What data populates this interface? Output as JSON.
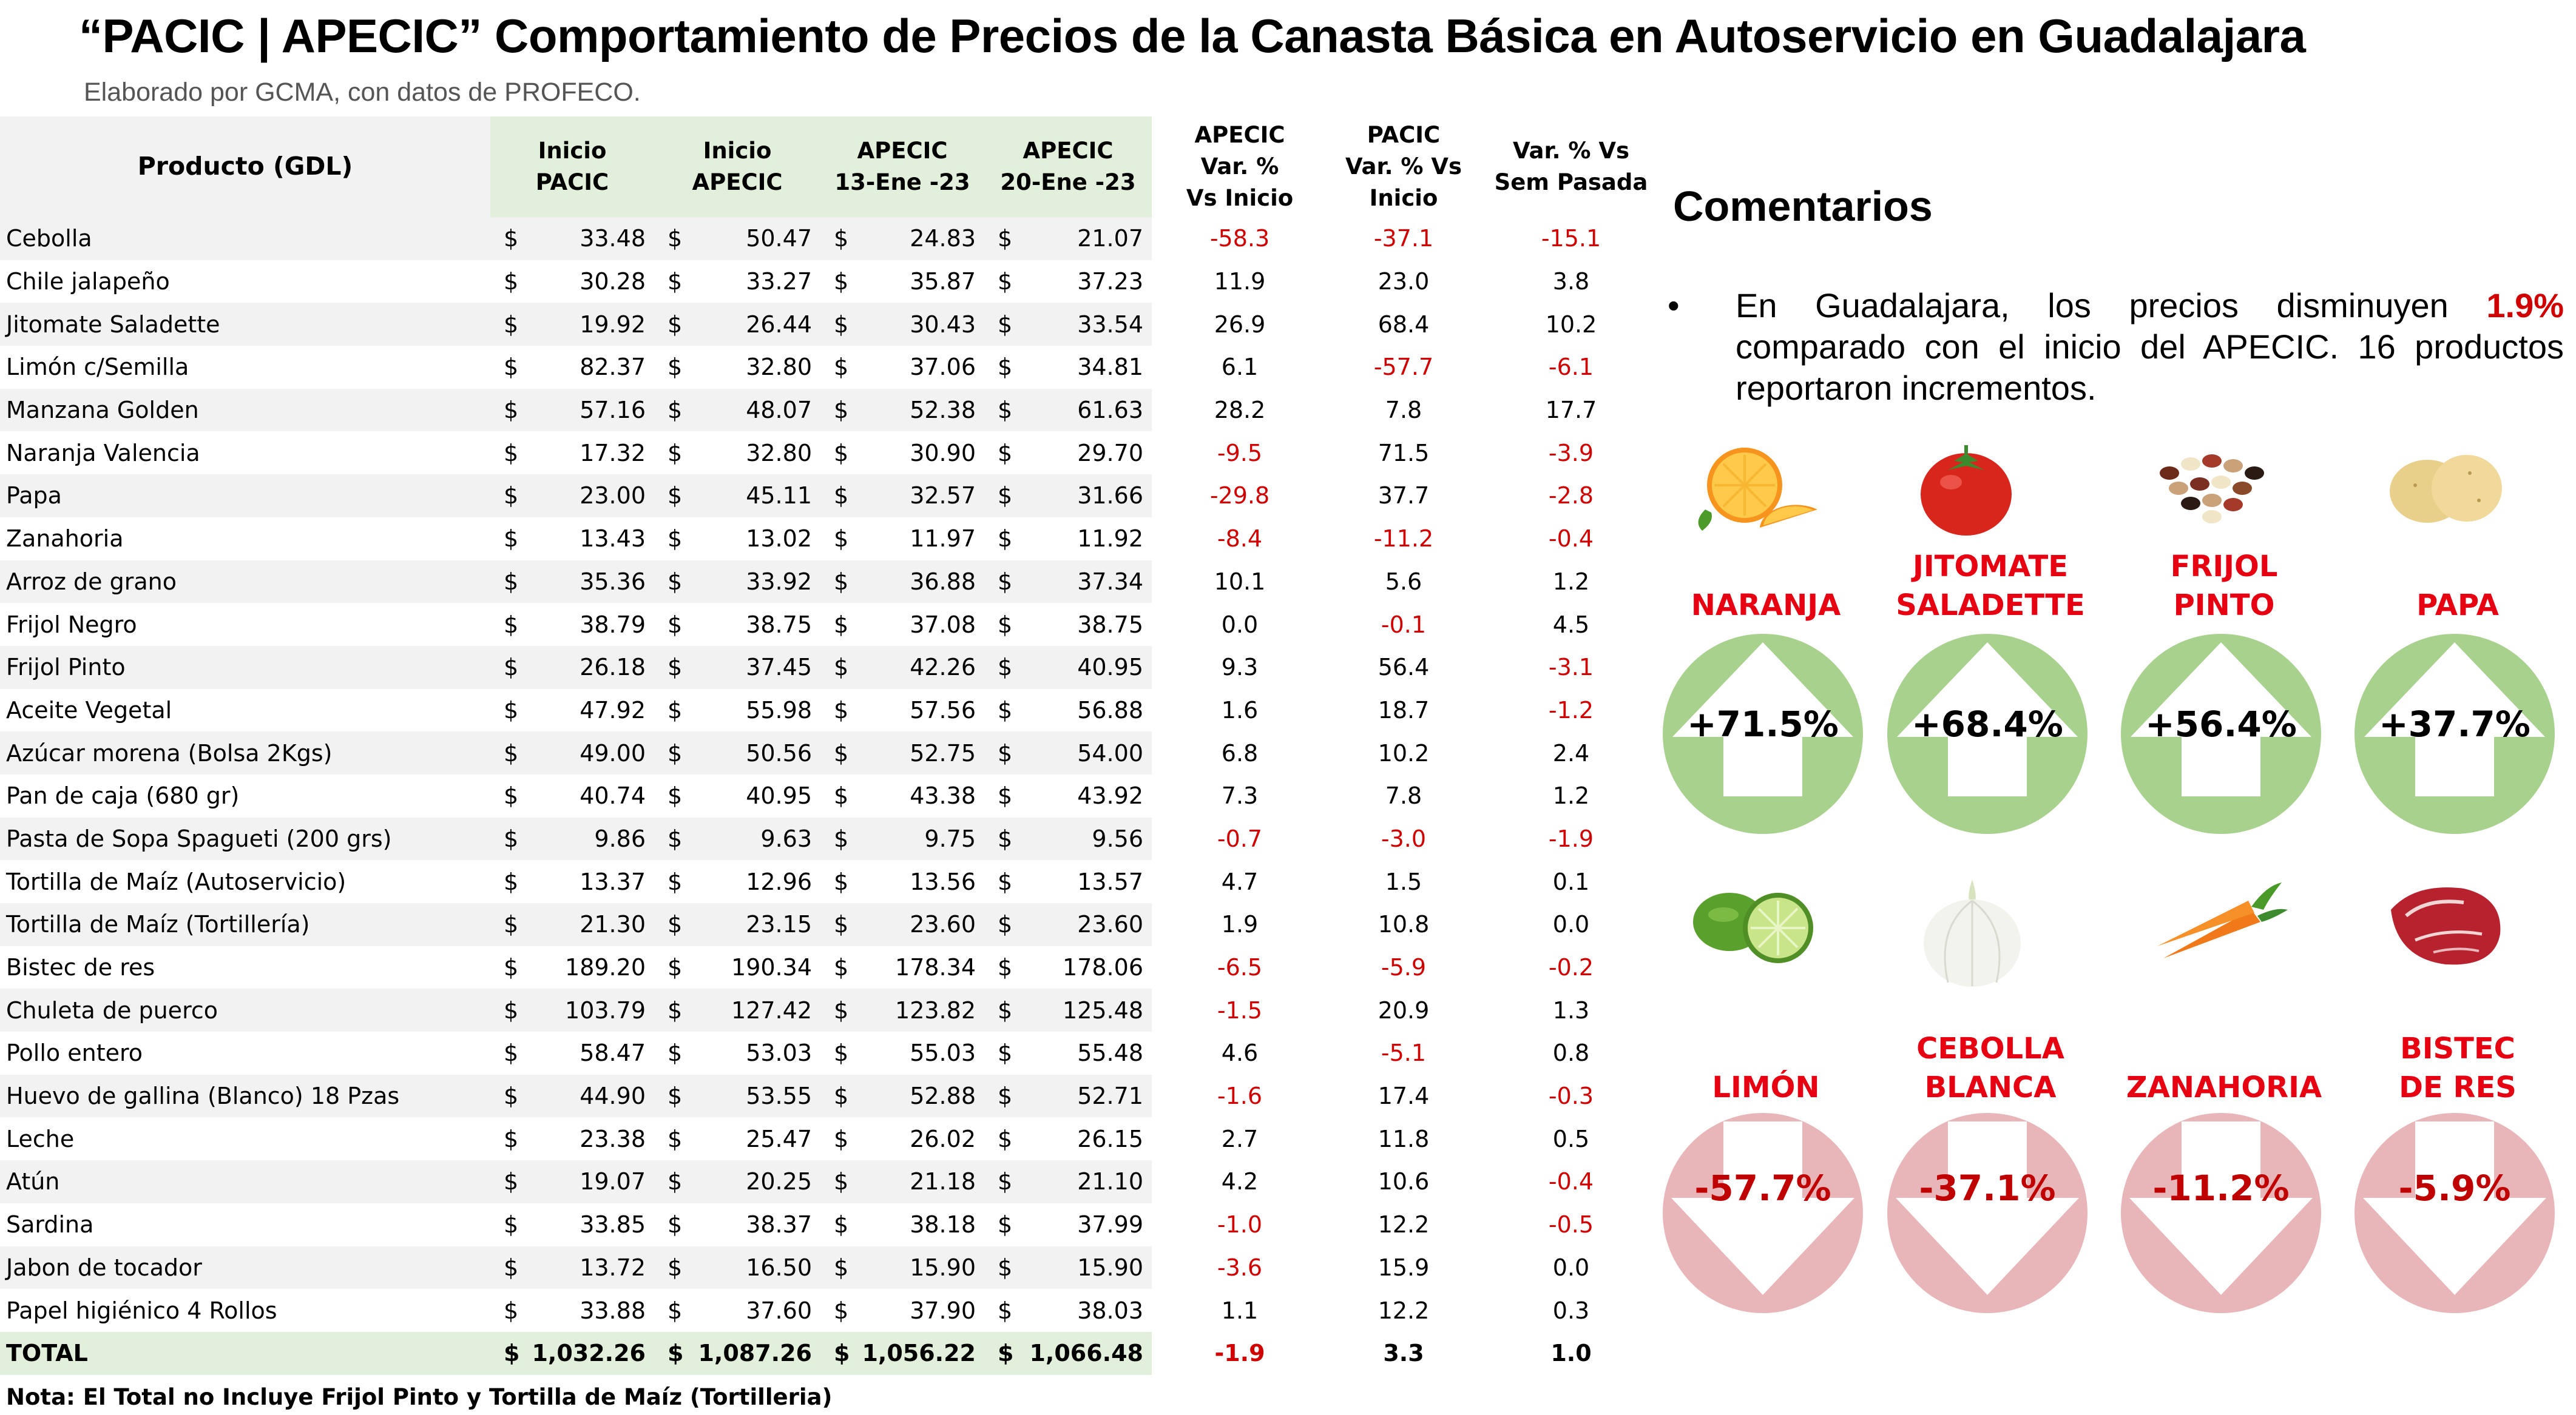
{
  "title": "“PACIC | APECIC” Comportamiento de Precios de la Canasta Básica en Autoservicio en Guadalajara",
  "subtitle": "Elaborado por GCMA, con datos de PROFECO.",
  "table": {
    "headers": {
      "product": "Producto (GDL)",
      "inicio_pacic": [
        "Inicio",
        "PACIC"
      ],
      "inicio_apecic": [
        "Inicio",
        "APECIC"
      ],
      "apecic_13": [
        "APECIC",
        "13-Ene -23"
      ],
      "apecic_20": [
        "APECIC",
        "20-Ene -23"
      ],
      "var_apecic": [
        "APECIC",
        "Var. %",
        "Vs  Inicio"
      ],
      "var_pacic": [
        "PACIC",
        "Var. % Vs",
        "Inicio"
      ],
      "var_sem": [
        "Var. % Vs",
        "Sem Pasada"
      ]
    },
    "currency": "$",
    "rows": [
      {
        "product": "Cebolla",
        "p1": "33.48",
        "p2": "50.47",
        "p3": "24.83",
        "p4": "21.07",
        "v1": "-58.3",
        "v2": "-37.1",
        "v3": "-15.1"
      },
      {
        "product": "Chile jalapeño",
        "p1": "30.28",
        "p2": "33.27",
        "p3": "35.87",
        "p4": "37.23",
        "v1": "11.9",
        "v2": "23.0",
        "v3": "3.8"
      },
      {
        "product": "Jitomate Saladette",
        "p1": "19.92",
        "p2": "26.44",
        "p3": "30.43",
        "p4": "33.54",
        "v1": "26.9",
        "v2": "68.4",
        "v3": "10.2"
      },
      {
        "product": "Limón c/Semilla",
        "p1": "82.37",
        "p2": "32.80",
        "p3": "37.06",
        "p4": "34.81",
        "v1": "6.1",
        "v2": "-57.7",
        "v3": "-6.1"
      },
      {
        "product": "Manzana Golden",
        "p1": "57.16",
        "p2": "48.07",
        "p3": "52.38",
        "p4": "61.63",
        "v1": "28.2",
        "v2": "7.8",
        "v3": "17.7"
      },
      {
        "product": "Naranja Valencia",
        "p1": "17.32",
        "p2": "32.80",
        "p3": "30.90",
        "p4": "29.70",
        "v1": "-9.5",
        "v2": "71.5",
        "v3": "-3.9"
      },
      {
        "product": "Papa",
        "p1": "23.00",
        "p2": "45.11",
        "p3": "32.57",
        "p4": "31.66",
        "v1": "-29.8",
        "v2": "37.7",
        "v3": "-2.8"
      },
      {
        "product": "Zanahoria",
        "p1": "13.43",
        "p2": "13.02",
        "p3": "11.97",
        "p4": "11.92",
        "v1": "-8.4",
        "v2": "-11.2",
        "v3": "-0.4"
      },
      {
        "product": "Arroz de grano",
        "p1": "35.36",
        "p2": "33.92",
        "p3": "36.88",
        "p4": "37.34",
        "v1": "10.1",
        "v2": "5.6",
        "v3": "1.2"
      },
      {
        "product": "Frijol Negro",
        "p1": "38.79",
        "p2": "38.75",
        "p3": "37.08",
        "p4": "38.75",
        "v1": "0.0",
        "v2": "-0.1",
        "v3": "4.5"
      },
      {
        "product": "Frijol Pinto",
        "p1": "26.18",
        "p2": "37.45",
        "p3": "42.26",
        "p4": "40.95",
        "v1": "9.3",
        "v2": "56.4",
        "v3": "-3.1"
      },
      {
        "product": "Aceite Vegetal",
        "p1": "47.92",
        "p2": "55.98",
        "p3": "57.56",
        "p4": "56.88",
        "v1": "1.6",
        "v2": "18.7",
        "v3": "-1.2"
      },
      {
        "product": "Azúcar morena (Bolsa 2Kgs)",
        "p1": "49.00",
        "p2": "50.56",
        "p3": "52.75",
        "p4": "54.00",
        "v1": "6.8",
        "v2": "10.2",
        "v3": "2.4"
      },
      {
        "product": "Pan de caja (680 gr)",
        "p1": "40.74",
        "p2": "40.95",
        "p3": "43.38",
        "p4": "43.92",
        "v1": "7.3",
        "v2": "7.8",
        "v3": "1.2"
      },
      {
        "product": "Pasta de Sopa Spagueti (200 grs)",
        "p1": "9.86",
        "p2": "9.63",
        "p3": "9.75",
        "p4": "9.56",
        "v1": "-0.7",
        "v2": "-3.0",
        "v3": "-1.9"
      },
      {
        "product": "Tortilla de Maíz (Autoservicio)",
        "p1": "13.37",
        "p2": "12.96",
        "p3": "13.56",
        "p4": "13.57",
        "v1": "4.7",
        "v2": "1.5",
        "v3": "0.1"
      },
      {
        "product": "Tortilla de Maíz (Tortillería)",
        "p1": "21.30",
        "p2": "23.15",
        "p3": "23.60",
        "p4": "23.60",
        "v1": "1.9",
        "v2": "10.8",
        "v3": "0.0"
      },
      {
        "product": "Bistec de res",
        "p1": "189.20",
        "p2": "190.34",
        "p3": "178.34",
        "p4": "178.06",
        "v1": "-6.5",
        "v2": "-5.9",
        "v3": "-0.2"
      },
      {
        "product": "Chuleta de puerco",
        "p1": "103.79",
        "p2": "127.42",
        "p3": "123.82",
        "p4": "125.48",
        "v1": "-1.5",
        "v2": "20.9",
        "v3": "1.3"
      },
      {
        "product": "Pollo entero",
        "p1": "58.47",
        "p2": "53.03",
        "p3": "55.03",
        "p4": "55.48",
        "v1": "4.6",
        "v2": "-5.1",
        "v3": "0.8"
      },
      {
        "product": "Huevo de gallina (Blanco) 18 Pzas",
        "p1": "44.90",
        "p2": "53.55",
        "p3": "52.88",
        "p4": "52.71",
        "v1": "-1.6",
        "v2": "17.4",
        "v3": "-0.3"
      },
      {
        "product": "Leche",
        "p1": "23.38",
        "p2": "25.47",
        "p3": "26.02",
        "p4": "26.15",
        "v1": "2.7",
        "v2": "11.8",
        "v3": "0.5"
      },
      {
        "product": "Atún",
        "p1": "19.07",
        "p2": "20.25",
        "p3": "21.18",
        "p4": "21.10",
        "v1": "4.2",
        "v2": "10.6",
        "v3": "-0.4"
      },
      {
        "product": "Sardina",
        "p1": "33.85",
        "p2": "38.37",
        "p3": "38.18",
        "p4": "37.99",
        "v1": "-1.0",
        "v2": "12.2",
        "v3": "-0.5"
      },
      {
        "product": "Jabon de tocador",
        "p1": "13.72",
        "p2": "16.50",
        "p3": "15.90",
        "p4": "15.90",
        "v1": "-3.6",
        "v2": "15.9",
        "v3": "0.0"
      },
      {
        "product": "Papel higiénico 4 Rollos",
        "p1": "33.88",
        "p2": "37.60",
        "p3": "37.90",
        "p4": "38.03",
        "v1": "1.1",
        "v2": "12.2",
        "v3": "0.3"
      }
    ],
    "total": {
      "product": "TOTAL",
      "p1": "1,032.26",
      "p2": "1,087.26",
      "p3": "1,056.22",
      "p4": "1,066.48",
      "v1": "-1.9",
      "v2": "3.3",
      "v3": "1.0"
    },
    "note": "Nota: El Total no Incluye Frijol Pinto y Tortilla de Maíz (Tortilleria)"
  },
  "comments": {
    "title": "Comentarios",
    "bullet": "•",
    "text_before": "En Guadalajara, los precios disminuyen ",
    "highlight": "1.9%",
    "text_after": " comparado con el inicio del APECIC. 16 productos reportaron incrementos."
  },
  "colors": {
    "header_green": "#e2efda",
    "row_gray": "#f2f2f2",
    "negative_red": "#d10000",
    "label_red": "#e60012",
    "up_circle": "#a9d18e",
    "down_circle": "#e8b5b8",
    "down_value": "#c00000"
  },
  "increases": [
    {
      "label_lines": [
        "NARANJA"
      ],
      "value": "+71.5%",
      "icon": "orange-icon"
    },
    {
      "label_lines": [
        "JITOMATE",
        "SALADETTE"
      ],
      "value": "+68.4%",
      "icon": "tomato-icon"
    },
    {
      "label_lines": [
        "FRIJOL",
        "PINTO"
      ],
      "value": "+56.4%",
      "icon": "beans-icon"
    },
    {
      "label_lines": [
        "PAPA"
      ],
      "value": "+37.7%",
      "icon": "potato-icon"
    }
  ],
  "decreases": [
    {
      "label_lines": [
        "LIMÓN"
      ],
      "value": "-57.7%",
      "icon": "lime-icon"
    },
    {
      "label_lines": [
        "CEBOLLA",
        "BLANCA"
      ],
      "value": "-37.1%",
      "icon": "onion-icon"
    },
    {
      "label_lines": [
        "ZANAHORIA"
      ],
      "value": "-11.2%",
      "icon": "carrot-icon"
    },
    {
      "label_lines": [
        "BISTEC",
        "DE RES"
      ],
      "value": "-5.9%",
      "icon": "steak-icon"
    }
  ]
}
